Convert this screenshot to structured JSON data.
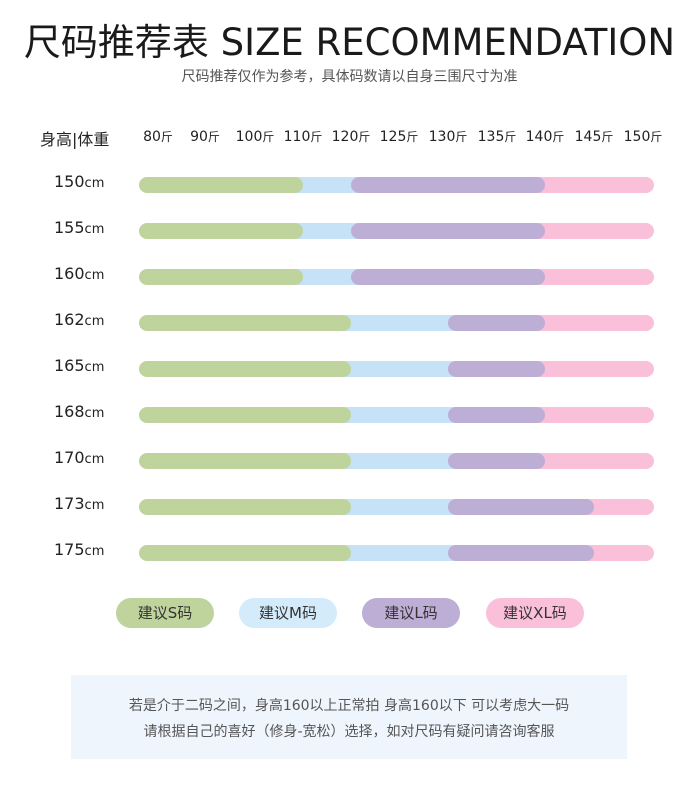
{
  "title": "尺码推荐表 SIZE RECOMMENDATION",
  "subtitle": "尺码推荐仅作为参考，具体码数请以自身三围尺寸为准",
  "table": {
    "corner_label": "身高|体重",
    "height_unit": "cm",
    "weight_unit": "斤",
    "weights": [
      "80",
      "90",
      "100",
      "110",
      "120",
      "125",
      "130",
      "135",
      "140",
      "145",
      "150"
    ],
    "rows": [
      {
        "height": "150",
        "s_max_weight": 110,
        "m_max_weight": 120,
        "l_max_weight": 140
      },
      {
        "height": "155",
        "s_max_weight": 110,
        "m_max_weight": 120,
        "l_max_weight": 140
      },
      {
        "height": "160",
        "s_max_weight": 110,
        "m_max_weight": 120,
        "l_max_weight": 140
      },
      {
        "height": "162",
        "s_max_weight": 120,
        "m_max_weight": 130,
        "l_max_weight": 140
      },
      {
        "height": "165",
        "s_max_weight": 120,
        "m_max_weight": 130,
        "l_max_weight": 140
      },
      {
        "height": "168",
        "s_max_weight": 120,
        "m_max_weight": 130,
        "l_max_weight": 140
      },
      {
        "height": "170",
        "s_max_weight": 120,
        "m_max_weight": 130,
        "l_max_weight": 140
      },
      {
        "height": "173",
        "s_max_weight": 120,
        "m_max_weight": 130,
        "l_max_weight": 145
      },
      {
        "height": "175",
        "s_max_weight": 120,
        "m_max_weight": 130,
        "l_max_weight": 145
      }
    ]
  },
  "legend": [
    {
      "label": "建议S码",
      "color": "#bfd39c"
    },
    {
      "label": "建议M码",
      "color": "#d4ebfb"
    },
    {
      "label": "建议L码",
      "color": "#bcaed4"
    },
    {
      "label": "建议XL码",
      "color": "#fbc0d9"
    }
  ],
  "note": {
    "line1": "若是介于二码之间，身高160以上正常拍  身高160以下 可以考虑大一码",
    "line2": "请根据自己的喜好（修身-宽松）选择，如对尺码有疑问请咨询客服"
  }
}
